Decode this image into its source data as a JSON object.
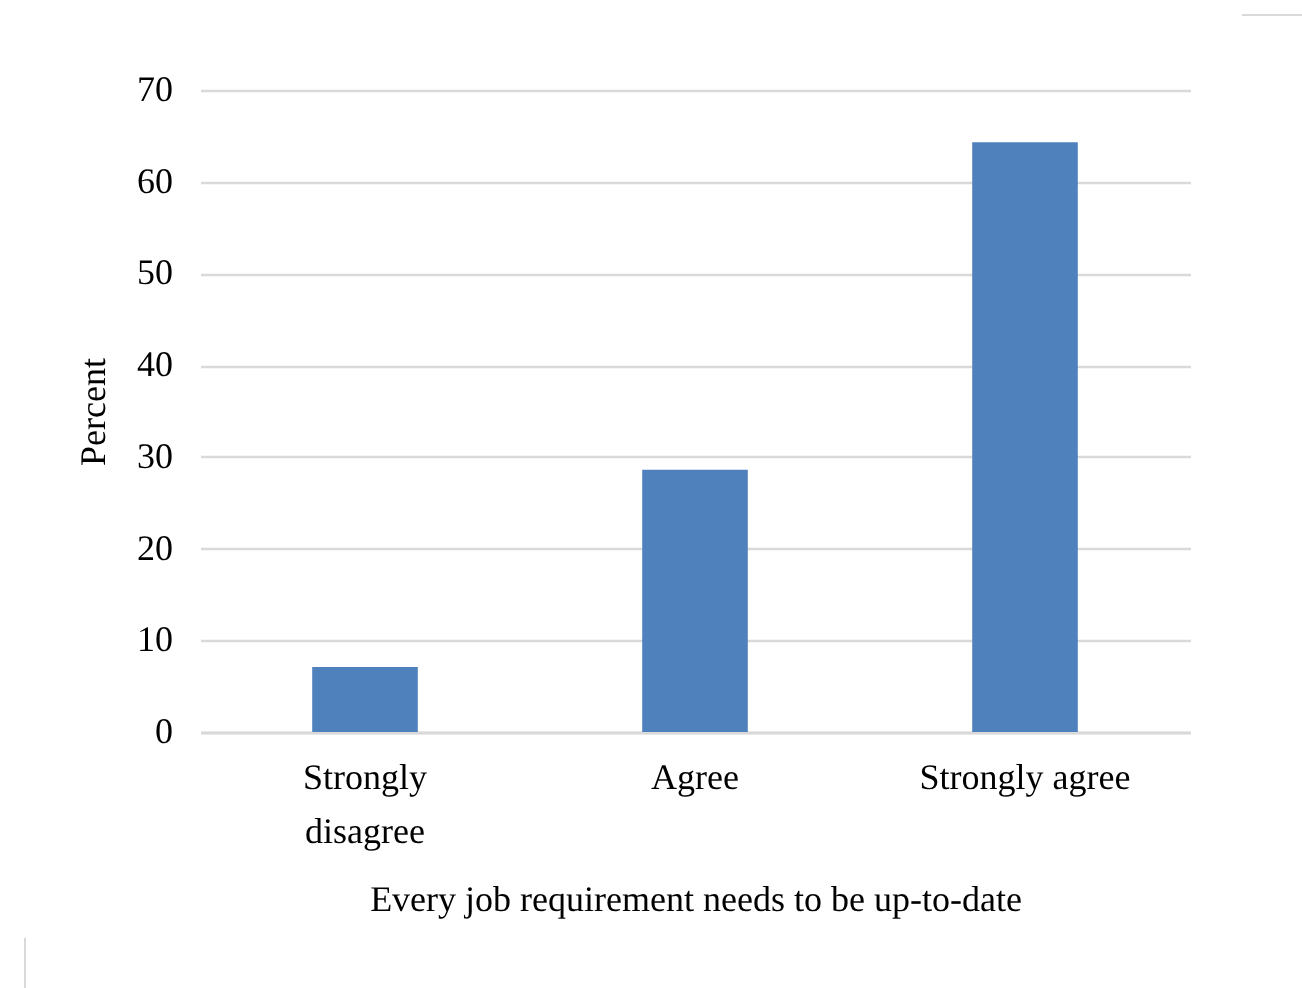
{
  "chart_data": {
    "type": "bar",
    "xlabel": "Every job requirement needs to be up-to-date",
    "ylabel": "Percent",
    "categories": [
      "Strongly disagree",
      "Agree",
      "Strongly agree"
    ],
    "values": [
      7.1,
      28.6,
      64.3
    ],
    "color": "#4f81bd",
    "ylim": [
      0,
      70
    ],
    "yticks": [
      0,
      10,
      20,
      30,
      40,
      50,
      60,
      70
    ],
    "grid": "y"
  }
}
